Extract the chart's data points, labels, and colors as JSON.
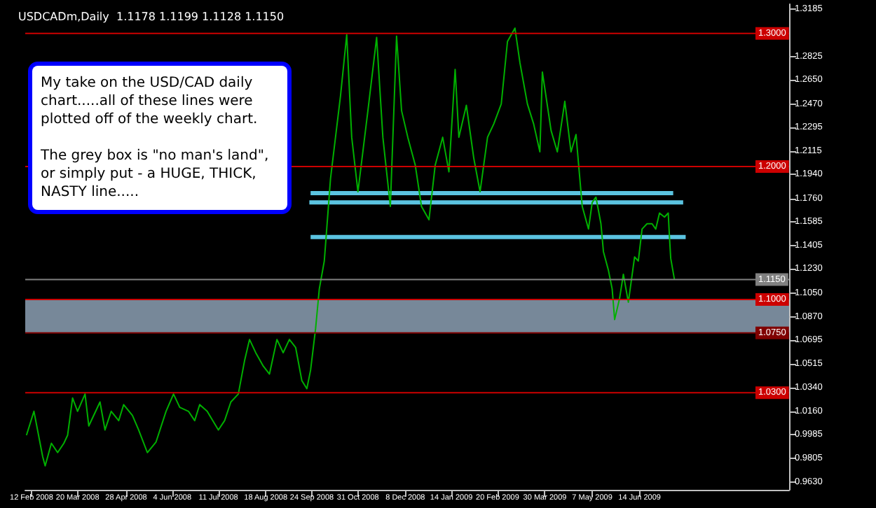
{
  "chart_data": {
    "type": "line",
    "title": "USDCADm,Daily  1.1178 1.1199 1.1128 1.1150",
    "annotations": [
      "My take on the USD/CAD daily chart.....all of these lines were plotted off of the weekly chart.\n\nThe grey box is \"no man's land\", or simply put - a HUGE, THICK, NASTY line....."
    ],
    "x": [
      "2008-02-08",
      "2008-02-14",
      "2008-02-21",
      "2008-02-23",
      "2008-02-28",
      "2008-03-04",
      "2008-03-09",
      "2008-03-12",
      "2008-03-16",
      "2008-03-20",
      "2008-03-26",
      "2008-03-29",
      "2008-04-07",
      "2008-04-11",
      "2008-04-16",
      "2008-04-22",
      "2008-04-26",
      "2008-05-03",
      "2008-05-08",
      "2008-05-15",
      "2008-05-22",
      "2008-05-30",
      "2008-06-05",
      "2008-06-10",
      "2008-06-17",
      "2008-06-22",
      "2008-06-26",
      "2008-07-02",
      "2008-07-11",
      "2008-07-16",
      "2008-07-21",
      "2008-07-27",
      "2008-08-01",
      "2008-08-05",
      "2008-08-10",
      "2008-08-16",
      "2008-08-21",
      "2008-08-27",
      "2008-09-01",
      "2008-09-06",
      "2008-09-11",
      "2008-09-16",
      "2008-09-20",
      "2008-09-23",
      "2008-09-27",
      "2008-09-30",
      "2008-10-04",
      "2008-10-09",
      "2008-10-17",
      "2008-10-22",
      "2008-10-26",
      "2008-10-31",
      "2008-11-08",
      "2008-11-15",
      "2008-11-20",
      "2008-11-26",
      "2008-12-01",
      "2008-12-05",
      "2008-12-10",
      "2008-12-16",
      "2008-12-21",
      "2008-12-27",
      "2009-01-01",
      "2009-01-07",
      "2009-01-12",
      "2009-01-17",
      "2009-01-20",
      "2009-01-26",
      "2009-02-01",
      "2009-02-06",
      "2009-02-12",
      "2009-02-17",
      "2009-02-23",
      "2009-02-28",
      "2009-03-06",
      "2009-03-10",
      "2009-03-16",
      "2009-03-21",
      "2009-03-26",
      "2009-03-28",
      "2009-04-04",
      "2009-04-09",
      "2009-04-15",
      "2009-04-20",
      "2009-04-24",
      "2009-04-29",
      "2009-05-04",
      "2009-05-07",
      "2009-05-10",
      "2009-05-14",
      "2009-05-16",
      "2009-05-20",
      "2009-05-23",
      "2009-05-25",
      "2009-05-29",
      "2009-06-01",
      "2009-06-05",
      "2009-06-10",
      "2009-06-13",
      "2009-06-16",
      "2009-06-20",
      "2009-06-24",
      "2009-06-27",
      "2009-06-30",
      "2009-07-04",
      "2009-07-07",
      "2009-07-08",
      "2009-07-09",
      "2009-07-12"
    ],
    "series": [
      {
        "color": "#00b000",
        "values": [
          0.998,
          1.016,
          0.982,
          0.975,
          0.992,
          0.985,
          0.992,
          0.998,
          1.026,
          1.016,
          1.029,
          1.005,
          1.023,
          1.002,
          1.016,
          1.009,
          1.021,
          1.013,
          1.002,
          0.985,
          0.993,
          1.016,
          1.029,
          1.019,
          1.016,
          1.009,
          1.021,
          1.016,
          1.002,
          1.009,
          1.023,
          1.029,
          1.054,
          1.07,
          1.06,
          1.05,
          1.044,
          1.07,
          1.06,
          1.07,
          1.064,
          1.039,
          1.033,
          1.047,
          1.078,
          1.108,
          1.129,
          1.191,
          1.253,
          1.299,
          1.222,
          1.181,
          1.242,
          1.297,
          1.222,
          1.17,
          1.298,
          1.242,
          1.222,
          1.201,
          1.17,
          1.16,
          1.201,
          1.222,
          1.196,
          1.273,
          1.222,
          1.246,
          1.206,
          1.181,
          1.222,
          1.232,
          1.247,
          1.294,
          1.304,
          1.278,
          1.247,
          1.232,
          1.211,
          1.271,
          1.227,
          1.211,
          1.249,
          1.211,
          1.224,
          1.17,
          1.153,
          1.173,
          1.177,
          1.157,
          1.136,
          1.122,
          1.108,
          1.085,
          1.101,
          1.119,
          1.098,
          1.132,
          1.129,
          1.153,
          1.157,
          1.157,
          1.153,
          1.165,
          1.162,
          1.165,
          1.147,
          1.131,
          1.115
        ]
      },
      {
        "type": "line",
        "color": "#5bc3e0",
        "x": [
          "2008-09-23",
          "2009-07-11"
        ],
        "values": [
          1.18,
          1.18
        ]
      },
      {
        "type": "line",
        "color": "#5bc3e0",
        "x": [
          "2008-09-22",
          "2009-07-19"
        ],
        "values": [
          1.173,
          1.173
        ]
      },
      {
        "type": "line",
        "color": "#5bc3e0",
        "x": [
          "2008-09-23",
          "2009-07-21"
        ],
        "values": [
          1.147,
          1.147
        ]
      }
    ],
    "xlim": [
      "2008-02-07",
      "2009-10-12"
    ],
    "xticks": [
      {
        "value": "2008-02-12",
        "label": "12 Feb 2008"
      },
      {
        "value": "2008-03-20",
        "label": "20 Mar 2008"
      },
      {
        "value": "2008-04-28",
        "label": "28 Apr 2008"
      },
      {
        "value": "2008-06-04",
        "label": "4 Jun 2008"
      },
      {
        "value": "2008-07-11",
        "label": "11 Jul 2008"
      },
      {
        "value": "2008-08-18",
        "label": "18 Aug 2008"
      },
      {
        "value": "2008-09-24",
        "label": "24 Sep 2008"
      },
      {
        "value": "2008-10-31",
        "label": "31 Oct 2008"
      },
      {
        "value": "2008-12-08",
        "label": "8 Dec 2008"
      },
      {
        "value": "2009-01-14",
        "label": "14 Jan 2009"
      },
      {
        "value": "2009-02-20",
        "label": "20 Feb 2009"
      },
      {
        "value": "2009-03-30",
        "label": "30 Mar 2009"
      },
      {
        "value": "2009-05-07",
        "label": "7 May 2009"
      },
      {
        "value": "2009-06-14",
        "label": "14 Jun 2009"
      }
    ],
    "ylim": [
      0.957,
      1.322
    ],
    "yticks": [
      {
        "value": 0.963,
        "label": "0.9630"
      },
      0.9805,
      0.9985,
      {
        "value": 1.016,
        "label": "1.0160"
      },
      {
        "value": 1.034,
        "label": "1.0340"
      },
      1.0515,
      1.0695,
      {
        "value": 1.087,
        "label": "1.0870"
      },
      {
        "value": 1.105,
        "label": "1.1050"
      },
      {
        "value": 1.123,
        "label": "1.1230"
      },
      1.1405,
      1.1585,
      {
        "value": 1.176,
        "label": "1.1760"
      },
      {
        "value": 1.194,
        "label": "1.1940"
      },
      1.2115,
      1.2295,
      {
        "value": 1.247,
        "label": "1.2470"
      },
      {
        "value": 1.265,
        "label": "1.2650"
      },
      1.2825,
      1.3185
    ],
    "ref_lines": [
      {
        "axis": "y",
        "value": 1.3,
        "label": "1.3000",
        "color": "#cc0000"
      },
      {
        "axis": "y",
        "value": 1.2,
        "label": "1.2000",
        "color": "#cc0000"
      },
      {
        "axis": "y",
        "value": 1.115,
        "label": "1.1150",
        "color": "#808080"
      },
      {
        "axis": "y",
        "value": 1.1,
        "label": "1.1000",
        "color": "#cc0000"
      },
      {
        "axis": "y",
        "value": 1.075,
        "label": "1.0750",
        "color": "#800000"
      },
      {
        "axis": "y",
        "value": 1.03,
        "label": "1.0300",
        "color": "#cc0000"
      }
    ],
    "bands": [
      {
        "axis": "y",
        "from": 1.075,
        "to": 1.1,
        "color": "#778899"
      }
    ],
    "grid": false,
    "marker": "none",
    "line_style": "solid"
  }
}
